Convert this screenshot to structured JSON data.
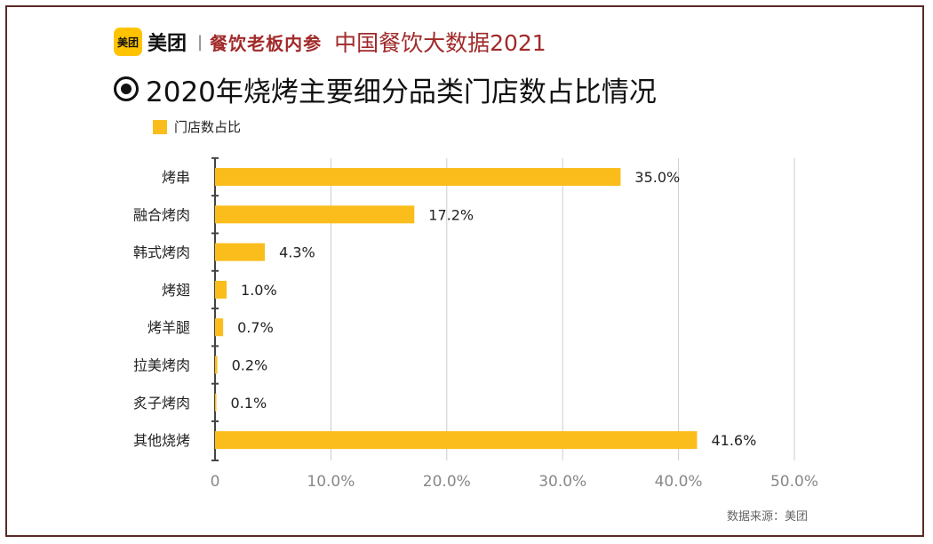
{
  "header": {
    "brand_mark": "美团",
    "brand_name": "美团",
    "separator": "|",
    "publisher": "餐饮老板内参",
    "report_title": "中国餐饮大数据2021"
  },
  "chart_title": "2020年烧烤主要细分品类门店数占比情况",
  "legend_label": "门店数占比",
  "source_note": "数据来源：美团",
  "colors": {
    "bar": "#fbbd1c",
    "frame": "#5a2a27",
    "accent": "#a12a2a",
    "grid": "#cccccc"
  },
  "chart_data": {
    "type": "bar",
    "orientation": "horizontal",
    "title": "2020年烧烤主要细分品类门店数占比情况",
    "categories": [
      "烤串",
      "融合烤肉",
      "韩式烤肉",
      "烤翅",
      "烤羊腿",
      "拉美烤肉",
      "炙子烤肉",
      "其他烧烤"
    ],
    "series": [
      {
        "name": "门店数占比",
        "values": [
          35.0,
          17.2,
          4.3,
          1.0,
          0.7,
          0.2,
          0.1,
          41.6
        ]
      }
    ],
    "value_labels": [
      "35.0%",
      "17.2%",
      "4.3%",
      "1.0%",
      "0.7%",
      "0.2%",
      "0.1%",
      "41.6%"
    ],
    "xlim": [
      0,
      50
    ],
    "xticks": [
      0,
      10,
      20,
      30,
      40,
      50
    ],
    "xtick_labels": [
      "0",
      "10.0%",
      "20.0%",
      "30.0%",
      "40.0%",
      "50.0%"
    ],
    "grid": true,
    "legend_position": "top-left"
  }
}
